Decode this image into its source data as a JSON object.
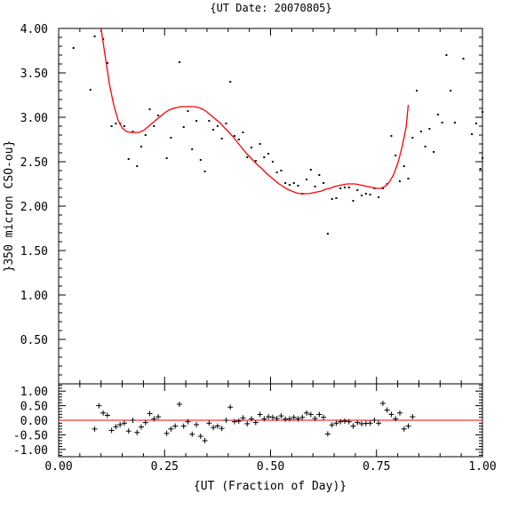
{
  "chart_data": [
    {
      "type": "scatter",
      "title": "{UT Date: 20070805}",
      "xlabel": "{UT (Fraction of Day)}",
      "ylabel": "}350 micron CSO-ou}",
      "xlim": [
        0,
        1
      ],
      "ylim": [
        0,
        4
      ],
      "x_ticks": [
        "0.00",
        "0.25",
        "0.50",
        "0.75",
        "1.00"
      ],
      "y_ticks": [
        "0.50",
        "1.00",
        "1.50",
        "2.00",
        "2.50",
        "3.00",
        "3.50",
        "4.00"
      ],
      "grid": false,
      "colors": {
        "points": "#000000",
        "fit": "#ff0000"
      },
      "series": [
        {
          "marker": "dot",
          "points": [
            [
              0.035,
              3.78
            ],
            [
              0.075,
              3.31
            ],
            [
              0.085,
              3.91
            ],
            [
              0.105,
              3.88
            ],
            [
              0.115,
              3.61
            ],
            [
              0.125,
              2.9
            ],
            [
              0.135,
              2.93
            ],
            [
              0.145,
              2.93
            ],
            [
              0.155,
              2.9
            ],
            [
              0.165,
              2.53
            ],
            [
              0.175,
              2.84
            ],
            [
              0.185,
              2.45
            ],
            [
              0.195,
              2.67
            ],
            [
              0.205,
              2.8
            ],
            [
              0.215,
              3.09
            ],
            [
              0.225,
              2.9
            ],
            [
              0.235,
              3.02
            ],
            [
              0.255,
              2.54
            ],
            [
              0.265,
              2.77
            ],
            [
              0.285,
              3.62
            ],
            [
              0.295,
              2.89
            ],
            [
              0.305,
              3.07
            ],
            [
              0.315,
              2.64
            ],
            [
              0.325,
              2.96
            ],
            [
              0.335,
              2.52
            ],
            [
              0.345,
              2.39
            ],
            [
              0.355,
              2.96
            ],
            [
              0.365,
              2.86
            ],
            [
              0.375,
              2.9
            ],
            [
              0.385,
              2.76
            ],
            [
              0.395,
              2.93
            ],
            [
              0.405,
              3.4
            ],
            [
              0.415,
              2.79
            ],
            [
              0.425,
              2.75
            ],
            [
              0.435,
              2.83
            ],
            [
              0.445,
              2.55
            ],
            [
              0.455,
              2.66
            ],
            [
              0.465,
              2.51
            ],
            [
              0.475,
              2.7
            ],
            [
              0.485,
              2.55
            ],
            [
              0.495,
              2.59
            ],
            [
              0.505,
              2.5
            ],
            [
              0.515,
              2.38
            ],
            [
              0.525,
              2.4
            ],
            [
              0.535,
              2.26
            ],
            [
              0.545,
              2.24
            ],
            [
              0.555,
              2.26
            ],
            [
              0.565,
              2.23
            ],
            [
              0.575,
              2.14
            ],
            [
              0.585,
              2.3
            ],
            [
              0.595,
              2.41
            ],
            [
              0.605,
              2.22
            ],
            [
              0.615,
              2.35
            ],
            [
              0.625,
              2.26
            ],
            [
              0.635,
              1.69
            ],
            [
              0.645,
              2.08
            ],
            [
              0.655,
              2.09
            ],
            [
              0.665,
              2.2
            ],
            [
              0.675,
              2.21
            ],
            [
              0.685,
              2.21
            ],
            [
              0.695,
              2.06
            ],
            [
              0.705,
              2.18
            ],
            [
              0.715,
              2.12
            ],
            [
              0.725,
              2.14
            ],
            [
              0.735,
              2.13
            ],
            [
              0.745,
              2.2
            ],
            [
              0.755,
              2.1
            ],
            [
              0.765,
              2.2
            ],
            [
              0.775,
              2.25
            ],
            [
              0.785,
              2.79
            ],
            [
              0.795,
              2.57
            ],
            [
              0.805,
              2.28
            ],
            [
              0.815,
              2.45
            ],
            [
              0.825,
              2.31
            ],
            [
              0.835,
              2.77
            ],
            [
              0.845,
              3.3
            ],
            [
              0.855,
              2.84
            ],
            [
              0.865,
              2.67
            ],
            [
              0.875,
              2.87
            ],
            [
              0.885,
              2.61
            ],
            [
              0.895,
              3.03
            ],
            [
              0.905,
              2.94
            ],
            [
              0.915,
              3.7
            ],
            [
              0.925,
              3.3
            ],
            [
              0.935,
              2.94
            ],
            [
              0.955,
              3.66
            ],
            [
              0.975,
              2.81
            ],
            [
              0.985,
              2.93
            ],
            [
              0.995,
              2.42
            ],
            [
              1.0,
              2.54
            ],
            [
              1.0,
              3.06
            ]
          ]
        },
        {
          "marker": "line",
          "fit": true,
          "points": [
            [
              0.1,
              4.0
            ],
            [
              0.11,
              3.68
            ],
            [
              0.12,
              3.37
            ],
            [
              0.13,
              3.14
            ],
            [
              0.14,
              2.97
            ],
            [
              0.15,
              2.88
            ],
            [
              0.16,
              2.84
            ],
            [
              0.17,
              2.83
            ],
            [
              0.18,
              2.83
            ],
            [
              0.19,
              2.83
            ],
            [
              0.2,
              2.85
            ],
            [
              0.21,
              2.89
            ],
            [
              0.22,
              2.93
            ],
            [
              0.23,
              2.97
            ],
            [
              0.24,
              3.01
            ],
            [
              0.25,
              3.05
            ],
            [
              0.26,
              3.08
            ],
            [
              0.27,
              3.1
            ],
            [
              0.28,
              3.11
            ],
            [
              0.29,
              3.12
            ],
            [
              0.3,
              3.12
            ],
            [
              0.31,
              3.12
            ],
            [
              0.32,
              3.12
            ],
            [
              0.33,
              3.11
            ],
            [
              0.34,
              3.09
            ],
            [
              0.35,
              3.06
            ],
            [
              0.36,
              3.02
            ],
            [
              0.37,
              2.98
            ],
            [
              0.38,
              2.94
            ],
            [
              0.39,
              2.89
            ],
            [
              0.4,
              2.84
            ],
            [
              0.41,
              2.79
            ],
            [
              0.42,
              2.73
            ],
            [
              0.43,
              2.67
            ],
            [
              0.44,
              2.61
            ],
            [
              0.45,
              2.56
            ],
            [
              0.46,
              2.51
            ],
            [
              0.47,
              2.46
            ],
            [
              0.48,
              2.42
            ],
            [
              0.49,
              2.37
            ],
            [
              0.5,
              2.33
            ],
            [
              0.51,
              2.29
            ],
            [
              0.52,
              2.25
            ],
            [
              0.53,
              2.22
            ],
            [
              0.54,
              2.19
            ],
            [
              0.55,
              2.17
            ],
            [
              0.56,
              2.15
            ],
            [
              0.57,
              2.14
            ],
            [
              0.58,
              2.14
            ],
            [
              0.59,
              2.14
            ],
            [
              0.6,
              2.15
            ],
            [
              0.61,
              2.16
            ],
            [
              0.62,
              2.17
            ],
            [
              0.63,
              2.19
            ],
            [
              0.64,
              2.2
            ],
            [
              0.65,
              2.22
            ],
            [
              0.66,
              2.23
            ],
            [
              0.67,
              2.24
            ],
            [
              0.68,
              2.25
            ],
            [
              0.69,
              2.25
            ],
            [
              0.7,
              2.25
            ],
            [
              0.71,
              2.24
            ],
            [
              0.72,
              2.23
            ],
            [
              0.73,
              2.22
            ],
            [
              0.74,
              2.21
            ],
            [
              0.75,
              2.2
            ],
            [
              0.76,
              2.2
            ],
            [
              0.77,
              2.22
            ],
            [
              0.78,
              2.27
            ],
            [
              0.79,
              2.35
            ],
            [
              0.8,
              2.48
            ],
            [
              0.81,
              2.66
            ],
            [
              0.82,
              2.89
            ],
            [
              0.825,
              3.14
            ]
          ]
        }
      ]
    },
    {
      "type": "scatter",
      "title": "",
      "xlabel": "{UT (Fraction of Day)}",
      "ylabel": "",
      "xlim": [
        0,
        1
      ],
      "ylim": [
        -1.25,
        1.25
      ],
      "x_ticks": [
        "0.00",
        "0.25",
        "0.50",
        "0.75",
        "1.00"
      ],
      "y_ticks": [
        "1.00",
        "0.50",
        "0.00",
        "-0.50",
        "-1.00"
      ],
      "grid": false,
      "colors": {
        "points": "#000000",
        "zero_line": "#ff0000"
      },
      "series": [
        {
          "marker": "plus",
          "points": [
            [
              0.085,
              -0.3
            ],
            [
              0.095,
              0.5
            ],
            [
              0.105,
              0.25
            ],
            [
              0.115,
              0.17
            ],
            [
              0.125,
              -0.35
            ],
            [
              0.135,
              -0.22
            ],
            [
              0.145,
              -0.15
            ],
            [
              0.155,
              -0.1
            ],
            [
              0.165,
              -0.37
            ],
            [
              0.175,
              0.0
            ],
            [
              0.185,
              -0.42
            ],
            [
              0.195,
              -0.23
            ],
            [
              0.205,
              -0.08
            ],
            [
              0.215,
              0.23
            ],
            [
              0.225,
              0.05
            ],
            [
              0.235,
              0.12
            ],
            [
              0.255,
              -0.45
            ],
            [
              0.265,
              -0.3
            ],
            [
              0.275,
              -0.2
            ],
            [
              0.285,
              0.55
            ],
            [
              0.295,
              -0.2
            ],
            [
              0.305,
              -0.05
            ],
            [
              0.315,
              -0.48
            ],
            [
              0.325,
              -0.15
            ],
            [
              0.335,
              -0.55
            ],
            [
              0.345,
              -0.7
            ],
            [
              0.355,
              -0.1
            ],
            [
              0.365,
              -0.25
            ],
            [
              0.375,
              -0.2
            ],
            [
              0.385,
              -0.28
            ],
            [
              0.395,
              0.0
            ],
            [
              0.405,
              0.45
            ],
            [
              0.415,
              -0.05
            ],
            [
              0.425,
              -0.03
            ],
            [
              0.435,
              0.08
            ],
            [
              0.445,
              -0.12
            ],
            [
              0.455,
              0.05
            ],
            [
              0.465,
              -0.08
            ],
            [
              0.475,
              0.2
            ],
            [
              0.485,
              0.05
            ],
            [
              0.495,
              0.12
            ],
            [
              0.505,
              0.1
            ],
            [
              0.515,
              0.06
            ],
            [
              0.525,
              0.15
            ],
            [
              0.535,
              0.04
            ],
            [
              0.545,
              0.05
            ],
            [
              0.555,
              0.1
            ],
            [
              0.565,
              0.05
            ],
            [
              0.575,
              0.1
            ],
            [
              0.585,
              0.25
            ],
            [
              0.595,
              0.2
            ],
            [
              0.605,
              0.06
            ],
            [
              0.615,
              0.2
            ],
            [
              0.625,
              0.1
            ],
            [
              0.635,
              -0.47
            ],
            [
              0.645,
              -0.16
            ],
            [
              0.655,
              -0.1
            ],
            [
              0.665,
              -0.05
            ],
            [
              0.675,
              -0.03
            ],
            [
              0.685,
              -0.05
            ],
            [
              0.695,
              -0.2
            ],
            [
              0.705,
              -0.08
            ],
            [
              0.715,
              -0.12
            ],
            [
              0.725,
              -0.11
            ],
            [
              0.735,
              -0.1
            ],
            [
              0.745,
              0.0
            ],
            [
              0.755,
              -0.1
            ],
            [
              0.765,
              0.58
            ],
            [
              0.775,
              0.35
            ],
            [
              0.785,
              0.2
            ],
            [
              0.795,
              0.05
            ],
            [
              0.805,
              0.25
            ],
            [
              0.815,
              -0.3
            ],
            [
              0.825,
              -0.2
            ],
            [
              0.835,
              0.12
            ]
          ]
        }
      ]
    }
  ]
}
